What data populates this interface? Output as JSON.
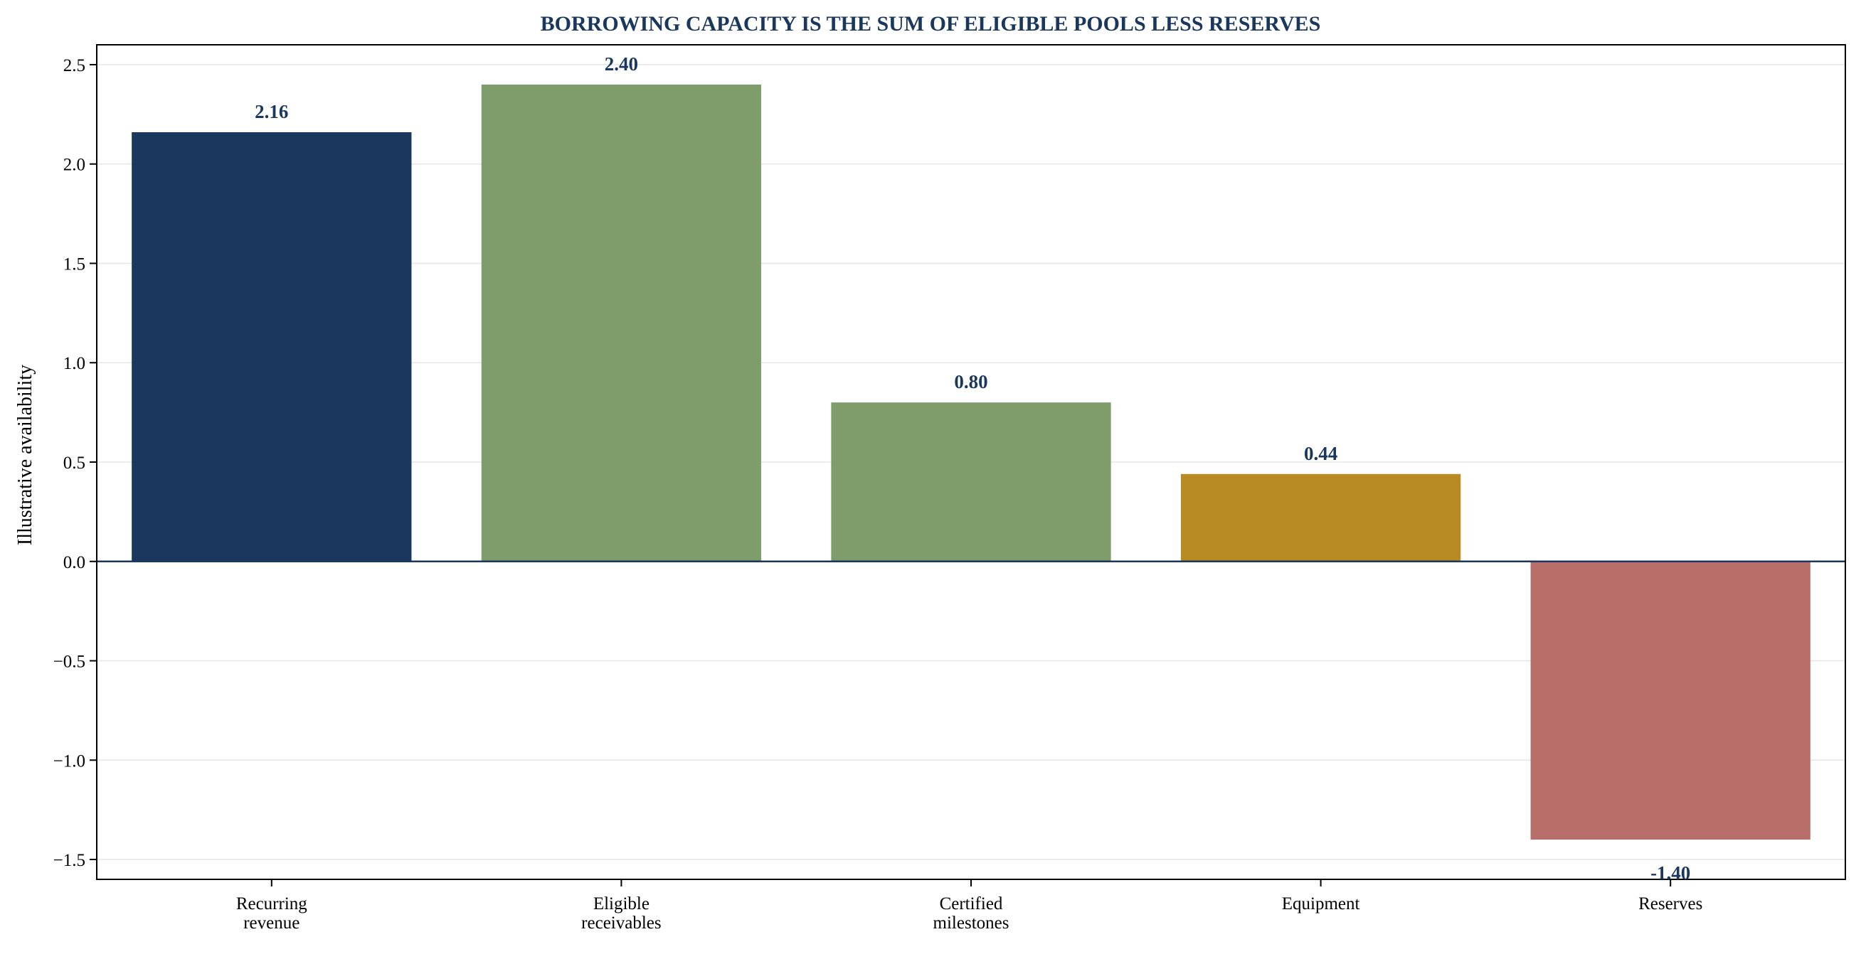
{
  "chart_data": {
    "type": "bar",
    "title": "BORROWING CAPACITY IS THE SUM OF ELIGIBLE POOLS LESS RESERVES",
    "xlabel": "",
    "ylabel": "Illustrative availability",
    "categories": [
      [
        "Recurring",
        "revenue"
      ],
      [
        "Eligible",
        "receivables"
      ],
      [
        "Certified",
        "milestones"
      ],
      [
        "Equipment"
      ],
      [
        "Reserves"
      ]
    ],
    "values": [
      2.16,
      2.4,
      0.8,
      0.44,
      -1.4
    ],
    "value_labels": [
      "2.16",
      "2.40",
      "0.80",
      "0.44",
      "-1.40"
    ],
    "bar_colors": [
      "#1a375e",
      "#7f9d6b",
      "#7f9d6b",
      "#b88a23",
      "#b86f69"
    ],
    "ylim": [
      -1.6,
      2.6
    ],
    "yticks": [
      2.5,
      2.0,
      1.5,
      1.0,
      0.5,
      0.0,
      -0.5,
      -1.0,
      -1.5
    ],
    "ytick_labels": [
      "2.5",
      "2.0",
      "1.5",
      "1.0",
      "0.5",
      "0.0",
      "−0.5",
      "−1.0",
      "−1.5"
    ],
    "grid": true,
    "zero_line": true,
    "colors": {
      "title": "#1a375e",
      "data_label": "#1a375e",
      "zero_line": "#1a375e",
      "grid": "#e6e6e6",
      "axes": "#000000"
    }
  }
}
